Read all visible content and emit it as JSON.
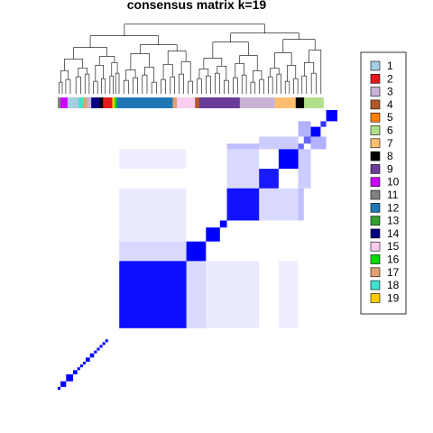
{
  "chart_data": {
    "type": "heatmap",
    "title": "consensus matrix k=19",
    "legend_position": "right",
    "matrix_color": "#0000ff",
    "background_color": "#ffffff",
    "legend": [
      {
        "label": "1",
        "color": "#a6cee3"
      },
      {
        "label": "2",
        "color": "#e31a1c"
      },
      {
        "label": "3",
        "color": "#cab2d6"
      },
      {
        "label": "4",
        "color": "#b15928"
      },
      {
        "label": "5",
        "color": "#ff7f00"
      },
      {
        "label": "6",
        "color": "#b2df8a"
      },
      {
        "label": "7",
        "color": "#fdbf6f"
      },
      {
        "label": "8",
        "color": "#000000"
      },
      {
        "label": "9",
        "color": "#6a3d9a"
      },
      {
        "label": "10",
        "color": "#cc00ff"
      },
      {
        "label": "11",
        "color": "#808080"
      },
      {
        "label": "12",
        "color": "#1f78b4"
      },
      {
        "label": "13",
        "color": "#33a02c"
      },
      {
        "label": "14",
        "color": "#000080"
      },
      {
        "label": "15",
        "color": "#fbcdee"
      },
      {
        "label": "16",
        "color": "#00dd00"
      },
      {
        "label": "17",
        "color": "#e0a070"
      },
      {
        "label": "18",
        "color": "#40e0d0"
      },
      {
        "label": "19",
        "color": "#ffcc00"
      }
    ],
    "class_bar": [
      {
        "class": "11",
        "fraction": 0.01
      },
      {
        "class": "10",
        "fraction": 0.025
      },
      {
        "class": "1",
        "fraction": 0.04
      },
      {
        "class": "18",
        "fraction": 0.015
      },
      {
        "class": "17",
        "fraction": 0.015
      },
      {
        "class": "3",
        "fraction": 0.015
      },
      {
        "class": "14",
        "fraction": 0.03
      },
      {
        "class": "8",
        "fraction": 0.012
      },
      {
        "class": "2",
        "fraction": 0.033
      },
      {
        "class": "19",
        "fraction": 0.008
      },
      {
        "class": "16",
        "fraction": 0.008
      },
      {
        "class": "12",
        "fraction": 0.2
      },
      {
        "class": "17",
        "fraction": 0.015
      },
      {
        "class": "15",
        "fraction": 0.065
      },
      {
        "class": "4",
        "fraction": 0.015
      },
      {
        "class": "9",
        "fraction": 0.145
      },
      {
        "class": "3",
        "fraction": 0.125
      },
      {
        "class": "7",
        "fraction": 0.075
      },
      {
        "class": "8",
        "fraction": 0.03
      },
      {
        "class": "6",
        "fraction": 0.069
      }
    ],
    "diagonal_blocks": [
      {
        "start": 0.0,
        "end": 0.01,
        "value": 1.0
      },
      {
        "start": 0.01,
        "end": 0.03,
        "value": 1.0
      },
      {
        "start": 0.03,
        "end": 0.055,
        "value": 1.0
      },
      {
        "start": 0.055,
        "end": 0.07,
        "value": 1.0
      },
      {
        "start": 0.07,
        "end": 0.08,
        "value": 1.0
      },
      {
        "start": 0.08,
        "end": 0.09,
        "value": 1.0
      },
      {
        "start": 0.09,
        "end": 0.1,
        "value": 1.0
      },
      {
        "start": 0.1,
        "end": 0.115,
        "value": 1.0
      },
      {
        "start": 0.115,
        "end": 0.13,
        "value": 1.0
      },
      {
        "start": 0.13,
        "end": 0.14,
        "value": 1.0
      },
      {
        "start": 0.14,
        "end": 0.15,
        "value": 1.0
      },
      {
        "start": 0.15,
        "end": 0.16,
        "value": 1.0
      },
      {
        "start": 0.16,
        "end": 0.17,
        "value": 1.0
      },
      {
        "start": 0.17,
        "end": 0.18,
        "value": 1.0
      },
      {
        "start": 0.22,
        "end": 0.46,
        "value": 0.95
      },
      {
        "start": 0.46,
        "end": 0.53,
        "value": 1.0
      },
      {
        "start": 0.53,
        "end": 0.58,
        "value": 1.0
      },
      {
        "start": 0.58,
        "end": 0.605,
        "value": 1.0
      },
      {
        "start": 0.605,
        "end": 0.72,
        "value": 0.93
      },
      {
        "start": 0.72,
        "end": 0.79,
        "value": 0.9
      },
      {
        "start": 0.79,
        "end": 0.86,
        "value": 1.0
      },
      {
        "start": 0.86,
        "end": 0.88,
        "value": 0.6
      },
      {
        "start": 0.88,
        "end": 0.905,
        "value": 0.6
      },
      {
        "start": 0.905,
        "end": 0.94,
        "value": 1.0
      },
      {
        "start": 0.94,
        "end": 0.96,
        "value": 0.8
      },
      {
        "start": 0.96,
        "end": 1.0,
        "value": 1.0
      }
    ],
    "off_diagonal_blocks": [
      {
        "rows": [
          0.605,
          0.72
        ],
        "cols": [
          0.72,
          0.86
        ],
        "value": 0.15
      },
      {
        "rows": [
          0.72,
          0.86
        ],
        "cols": [
          0.605,
          0.72
        ],
        "value": 0.15
      },
      {
        "rows": [
          0.86,
          0.905
        ],
        "cols": [
          0.72,
          0.86
        ],
        "value": 0.2
      },
      {
        "rows": [
          0.72,
          0.86
        ],
        "cols": [
          0.86,
          0.905
        ],
        "value": 0.2
      },
      {
        "rows": [
          0.86,
          0.88
        ],
        "cols": [
          0.605,
          0.72
        ],
        "value": 0.25
      },
      {
        "rows": [
          0.605,
          0.72
        ],
        "cols": [
          0.86,
          0.88
        ],
        "value": 0.25
      },
      {
        "rows": [
          0.22,
          0.46
        ],
        "cols": [
          0.46,
          0.53
        ],
        "value": 0.15
      },
      {
        "rows": [
          0.46,
          0.53
        ],
        "cols": [
          0.22,
          0.46
        ],
        "value": 0.15
      },
      {
        "rows": [
          0.22,
          0.46
        ],
        "cols": [
          0.53,
          0.72
        ],
        "value": 0.08
      },
      {
        "rows": [
          0.53,
          0.72
        ],
        "cols": [
          0.22,
          0.46
        ],
        "value": 0.08
      },
      {
        "rows": [
          0.79,
          0.86
        ],
        "cols": [
          0.22,
          0.46
        ],
        "value": 0.07
      },
      {
        "rows": [
          0.22,
          0.46
        ],
        "cols": [
          0.79,
          0.86
        ],
        "value": 0.07
      },
      {
        "rows": [
          0.905,
          0.96
        ],
        "cols": [
          0.86,
          0.905
        ],
        "value": 0.3
      },
      {
        "rows": [
          0.86,
          0.905
        ],
        "cols": [
          0.905,
          0.96
        ],
        "value": 0.3
      }
    ]
  }
}
